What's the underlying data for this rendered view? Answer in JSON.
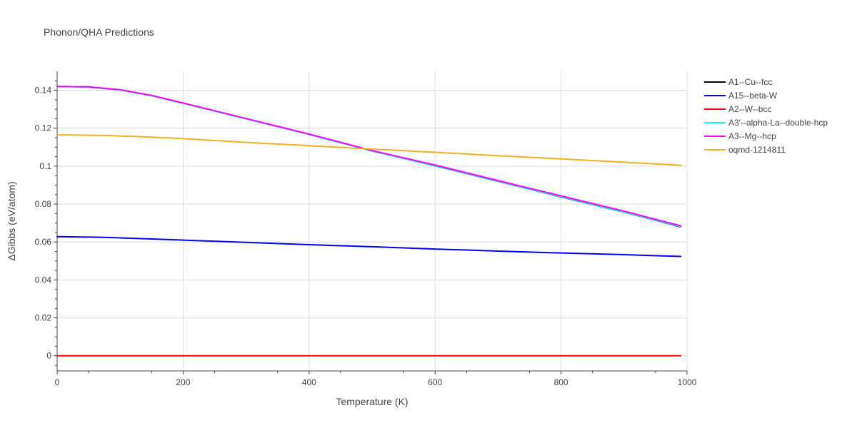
{
  "chart_data": {
    "type": "line",
    "title": "Phonon/QHA Predictions",
    "xlabel": "Temperature (K)",
    "ylabel": "ΔGibbs (eV/atom)",
    "xlim": [
      0,
      1000
    ],
    "ylim": [
      -0.008,
      0.15
    ],
    "x_ticks": [
      0,
      200,
      400,
      600,
      800,
      1000
    ],
    "x_tick_labels": [
      "0",
      "200",
      "400",
      "600",
      "800",
      "1000"
    ],
    "y_ticks": [
      0,
      0.02,
      0.04,
      0.06,
      0.08,
      0.1,
      0.12,
      0.14
    ],
    "y_tick_labels": [
      "0",
      "0.02",
      "0.04",
      "0.06",
      "0.08",
      "0.1",
      "0.12",
      "0.14"
    ],
    "grid": true,
    "legend_position": "top-right",
    "series": [
      {
        "name": "A1--Cu--fcc",
        "color": "#000000",
        "x": [
          0,
          50,
          100,
          150,
          200,
          300,
          400,
          500,
          600,
          700,
          800,
          900,
          990
        ],
        "y": [
          0.142,
          0.1418,
          0.1402,
          0.1372,
          0.1332,
          0.125,
          0.1168,
          0.108,
          0.1002,
          0.092,
          0.0838,
          0.0758,
          0.068
        ]
      },
      {
        "name": "A15--beta-W",
        "color": "#0000ff",
        "x": [
          0,
          50,
          80,
          150,
          200,
          300,
          400,
          500,
          600,
          700,
          800,
          900,
          990
        ],
        "y": [
          0.0628,
          0.0626,
          0.0624,
          0.0616,
          0.061,
          0.0598,
          0.0586,
          0.0575,
          0.0563,
          0.0552,
          0.0542,
          0.0533,
          0.0524
        ]
      },
      {
        "name": "A2--W--bcc",
        "color": "#ff0000",
        "x": [
          0,
          990
        ],
        "y": [
          0,
          0
        ]
      },
      {
        "name": "A3'--alpha-La--double-hcp",
        "color": "#00ffff",
        "x": [
          0,
          50,
          100,
          150,
          200,
          300,
          400,
          500,
          600,
          700,
          800,
          900,
          990
        ],
        "y": [
          0.1419,
          0.1417,
          0.1401,
          0.1371,
          0.1331,
          0.1249,
          0.1167,
          0.1079,
          0.1003,
          0.0921,
          0.0839,
          0.0759,
          0.0681
        ]
      },
      {
        "name": "A3--Mg--hcp",
        "color": "#ff00ff",
        "x": [
          0,
          50,
          100,
          150,
          200,
          300,
          400,
          500,
          600,
          700,
          800,
          900,
          990
        ],
        "y": [
          0.142,
          0.1418,
          0.1403,
          0.1373,
          0.1333,
          0.1251,
          0.1169,
          0.1082,
          0.1006,
          0.0924,
          0.0843,
          0.0763,
          0.0685
        ]
      },
      {
        "name": "oqmd-1214811",
        "color": "#f0b020",
        "x": [
          0,
          75,
          150,
          200,
          300,
          400,
          500,
          600,
          700,
          800,
          900,
          990
        ],
        "y": [
          0.1165,
          0.1162,
          0.1153,
          0.1145,
          0.1125,
          0.1108,
          0.109,
          0.1073,
          0.1055,
          0.1038,
          0.1021,
          0.1005
        ]
      }
    ]
  }
}
